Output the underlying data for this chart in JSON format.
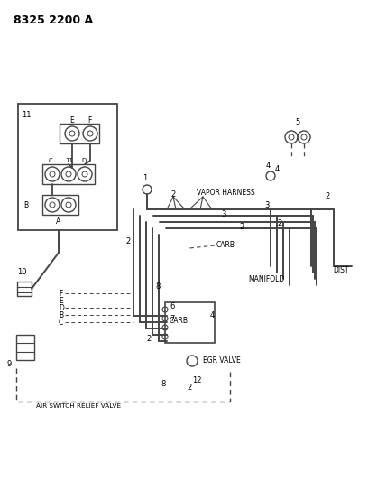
{
  "bg_color": "#ffffff",
  "lc": "#444444",
  "title": "8325 2200 A",
  "labels": {
    "vapor_harness": "VAPOR HARNESS",
    "carb_mid": "CARB",
    "carb_lower": "CARB",
    "egr_valve": "EGR VALVE",
    "manifold": "MANIFOLD",
    "dist": "DIST",
    "air_switch": "AIR SWITCH RELIEF VALVE"
  }
}
